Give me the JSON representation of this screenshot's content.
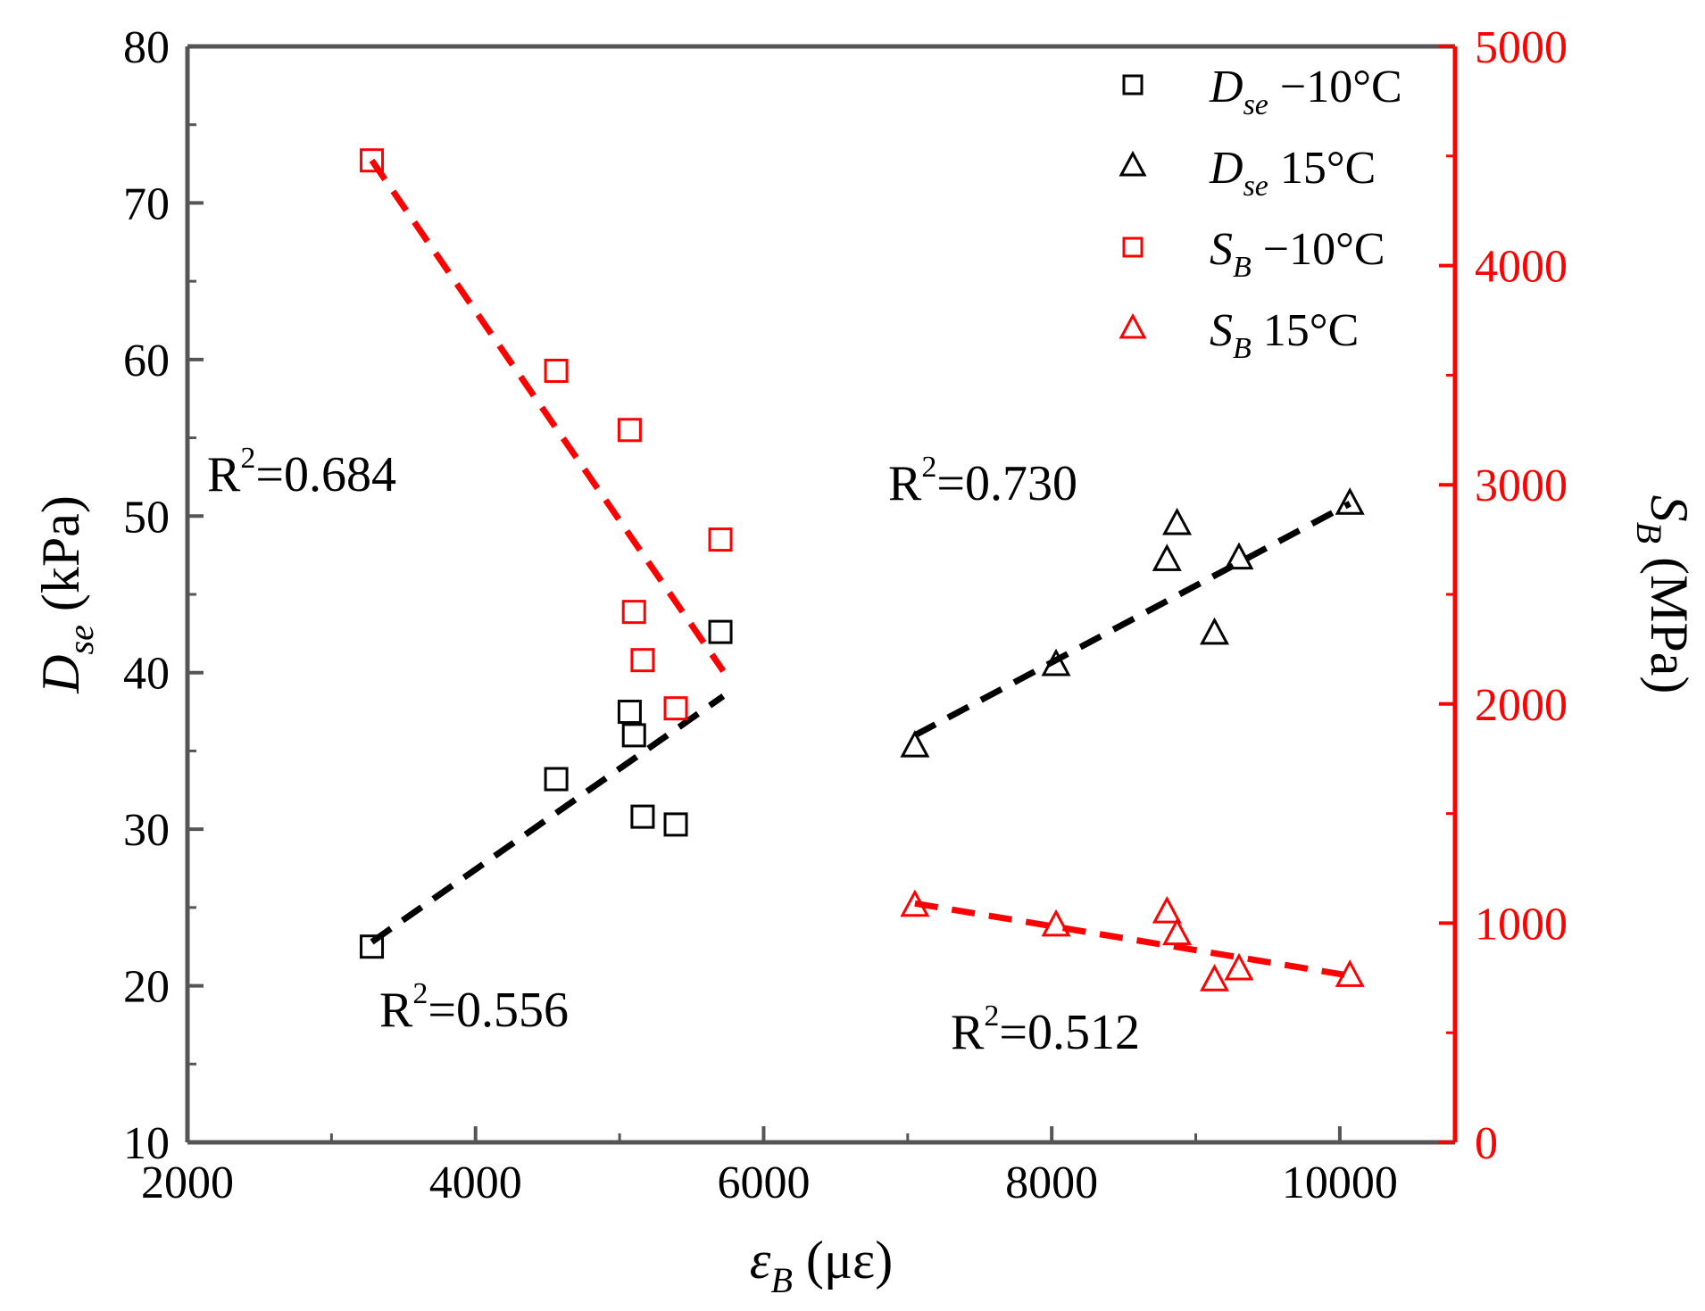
{
  "chart_data": {
    "type": "scatter",
    "x_axis": {
      "symbol": "ε",
      "subscript": "B",
      "unit": " (με)",
      "range": [
        2000,
        10800
      ],
      "ticks": [
        2000,
        4000,
        6000,
        8000,
        10000
      ],
      "tick_labels": [
        "2000",
        "4000",
        "6000",
        "8000",
        "10000"
      ],
      "minor_ticks": [
        3000,
        5000,
        7000,
        9000
      ]
    },
    "y_left": {
      "symbol": "D",
      "subscript": "se",
      "unit": " (kPa)",
      "range": [
        10,
        80
      ],
      "ticks": [
        10,
        20,
        30,
        40,
        50,
        60,
        70,
        80
      ],
      "tick_labels": [
        "10",
        "20",
        "30",
        "40",
        "50",
        "60",
        "70",
        "80"
      ],
      "minor_ticks": [
        15,
        25,
        35,
        45,
        55,
        65,
        75
      ],
      "color": "#000000"
    },
    "y_right": {
      "symbol": "S",
      "subscript": "B",
      "unit": " (MPa)",
      "range": [
        0,
        5000
      ],
      "ticks": [
        0,
        1000,
        2000,
        3000,
        4000,
        5000
      ],
      "tick_labels": [
        "0",
        "1000",
        "2000",
        "3000",
        "4000",
        "5000"
      ],
      "minor_ticks": [
        500,
        1500,
        2500,
        3500,
        4500
      ],
      "color": "#ff0000"
    },
    "series": [
      {
        "name": "Dse -10°C",
        "axis": "left",
        "marker": "square",
        "color": "#000000",
        "x": [
          3280,
          4560,
          5070,
          5100,
          5160,
          5390,
          5700
        ],
        "y": [
          22.5,
          33.2,
          37.5,
          36.0,
          30.8,
          30.3,
          42.6
        ]
      },
      {
        "name": "Dse 15°C",
        "axis": "left",
        "marker": "triangle",
        "color": "#000000",
        "x": [
          7050,
          8030,
          8800,
          8870,
          9130,
          9300,
          10070
        ],
        "y": [
          35.3,
          40.5,
          47.2,
          49.5,
          42.5,
          47.3,
          50.8
        ]
      },
      {
        "name": "SB -10°C",
        "axis": "right",
        "marker": "square",
        "color": "#ff0000",
        "x": [
          3280,
          4560,
          5070,
          5100,
          5160,
          5390,
          5700
        ],
        "y": [
          4480,
          3520,
          3250,
          2420,
          2200,
          1980,
          2750
        ]
      },
      {
        "name": "SB 15°C",
        "axis": "right",
        "marker": "triangle",
        "color": "#ff0000",
        "x": [
          7050,
          8030,
          8800,
          8870,
          9130,
          9300,
          10070
        ],
        "y": [
          1080,
          990,
          1050,
          950,
          740,
          790,
          760
        ]
      }
    ],
    "fit_lines": [
      {
        "series": "Dse -10°C",
        "axis": "left",
        "color": "#000000",
        "x": [
          3280,
          5720
        ],
        "y": [
          22.8,
          38.5
        ]
      },
      {
        "series": "Dse 15°C",
        "axis": "left",
        "color": "#000000",
        "x": [
          7050,
          10070
        ],
        "y": [
          36.0,
          50.8
        ]
      },
      {
        "series": "SB -10°C",
        "axis": "right",
        "color": "#ff0000",
        "x": [
          3280,
          5720
        ],
        "y": [
          4480,
          2150
        ]
      },
      {
        "series": "SB 15°C",
        "axis": "right",
        "color": "#ff0000",
        "x": [
          7050,
          10070
        ],
        "y": [
          1090,
          760
        ]
      }
    ],
    "legend": {
      "position": "top-right",
      "entries": [
        {
          "symbol": "D",
          "sub": "se",
          "text": " −10°C",
          "marker": "square",
          "color": "#000000"
        },
        {
          "symbol": "D",
          "sub": "se",
          "text": " 15°C",
          "marker": "triangle",
          "color": "#000000"
        },
        {
          "symbol": "S",
          "sub": "B",
          "text": " −10°C",
          "marker": "square",
          "color": "#ff0000"
        },
        {
          "symbol": "S",
          "sub": "B",
          "text": " 15°C",
          "marker": "triangle",
          "color": "#ff0000"
        }
      ]
    },
    "annotations": [
      {
        "base": "R",
        "sup": "2",
        "value": "=0.684",
        "refers_to": "SB -10°C"
      },
      {
        "base": "R",
        "sup": "2",
        "value": "=0.730",
        "refers_to": "Dse 15°C"
      },
      {
        "base": "R",
        "sup": "2",
        "value": "=0.556",
        "refers_to": "Dse -10°C"
      },
      {
        "base": "R",
        "sup": "2",
        "value": "=0.512",
        "refers_to": "SB 15°C"
      }
    ],
    "grid": false
  }
}
